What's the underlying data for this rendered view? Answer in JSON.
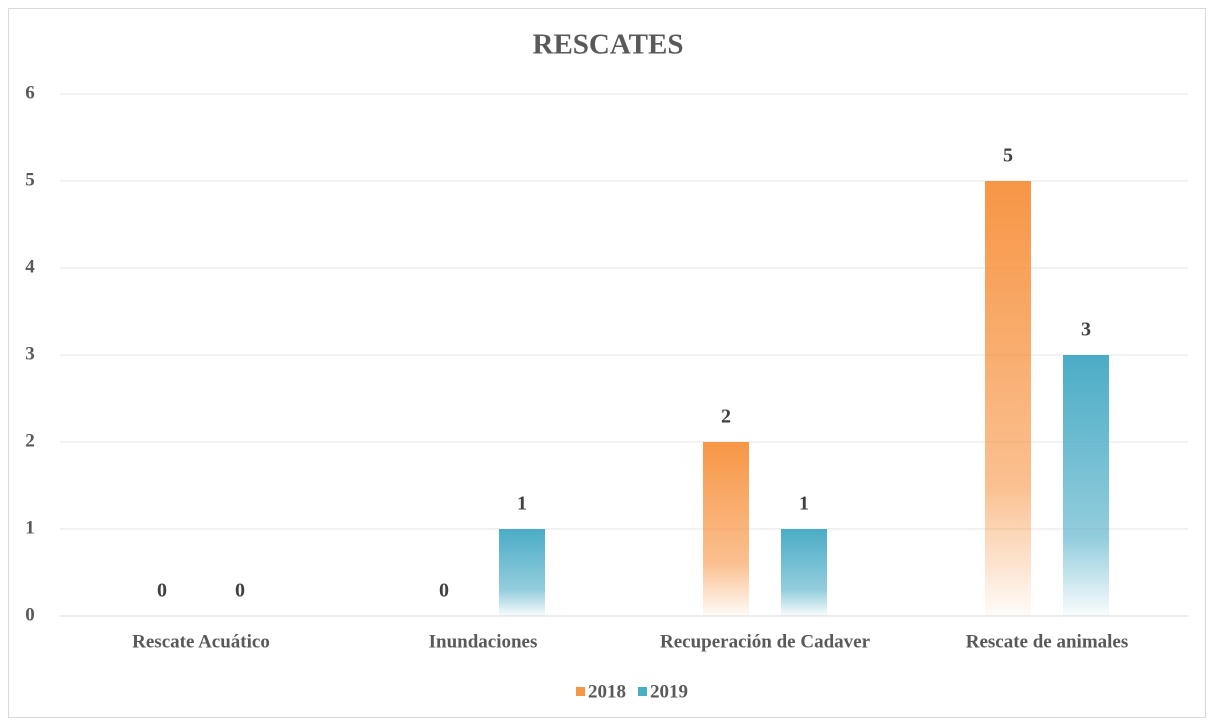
{
  "chart_data": {
    "type": "bar",
    "title": "RESCATES",
    "categories": [
      "Rescate Acuático",
      "Inundaciones",
      "Recuperación de Cadaver",
      "Rescate de animales"
    ],
    "series": [
      {
        "name": "2018",
        "color": "#f79646",
        "values": [
          0,
          0,
          2,
          5
        ]
      },
      {
        "name": "2019",
        "color": "#4bacc6",
        "values": [
          0,
          1,
          1,
          3
        ]
      }
    ],
    "ylim": [
      0,
      6
    ],
    "yticks": [
      0,
      1,
      2,
      3,
      4,
      5,
      6
    ],
    "grid": true,
    "legend": "bottom"
  }
}
